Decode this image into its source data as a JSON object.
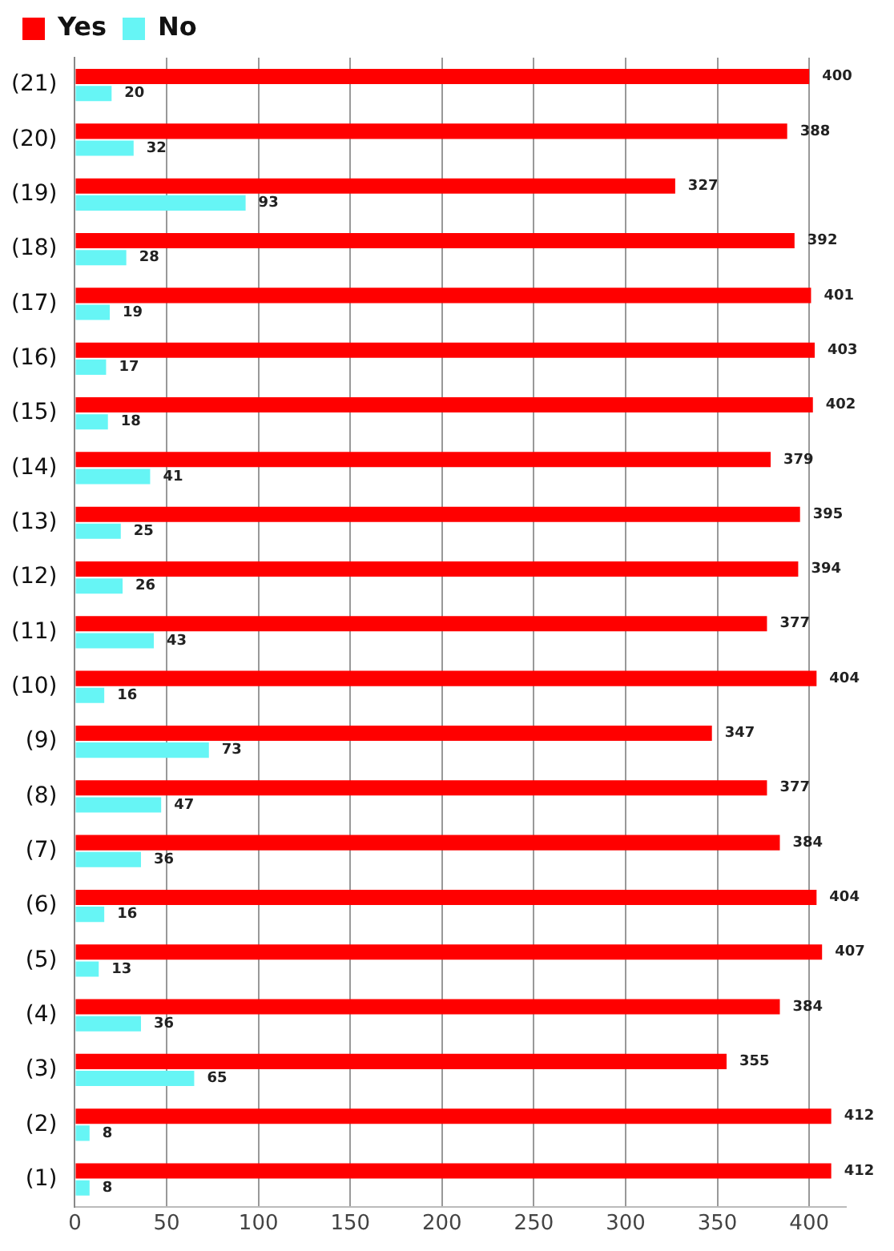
{
  "chart_data": {
    "type": "bar",
    "orientation": "horizontal",
    "categories": [
      "(21)",
      "(20)",
      "(19)",
      "(18)",
      "(17)",
      "(16)",
      "(15)",
      "(14)",
      "(13)",
      "(12)",
      "(11)",
      "(10)",
      "(9)",
      "(8)",
      "(7)",
      "(6)",
      "(5)",
      "(4)",
      "(3)",
      "(2)",
      "(1)"
    ],
    "series": [
      {
        "name": "Yes",
        "color": "#ff0000",
        "values": [
          400,
          388,
          327,
          392,
          401,
          403,
          402,
          379,
          395,
          394,
          377,
          404,
          347,
          377,
          384,
          404,
          407,
          384,
          355,
          412,
          412
        ]
      },
      {
        "name": "No",
        "color": "#66f5f5",
        "values": [
          20,
          32,
          93,
          28,
          19,
          17,
          18,
          41,
          25,
          26,
          43,
          16,
          73,
          47,
          36,
          16,
          13,
          36,
          65,
          8,
          8
        ]
      }
    ],
    "xlim": [
      0,
      420
    ],
    "xticks": [
      0,
      50,
      100,
      150,
      200,
      250,
      300,
      350,
      400
    ],
    "grid": "x",
    "legend": "top left",
    "data_labels": true
  }
}
